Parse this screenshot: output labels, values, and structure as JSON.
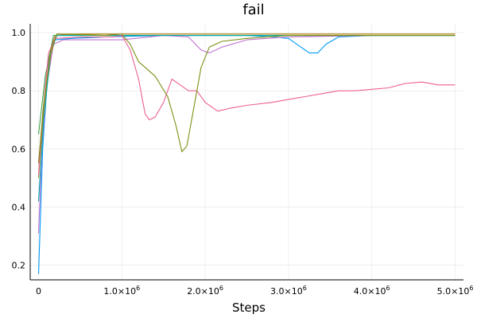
{
  "chart_data": {
    "type": "line",
    "title": "fail",
    "xlabel": "Steps",
    "ylabel": "",
    "xlim": [
      -100000,
      5100000
    ],
    "ylim": [
      0.15,
      1.03
    ],
    "grid": true,
    "legend": "none",
    "x_ticks": [
      {
        "value": 0,
        "label": "0",
        "exp": ""
      },
      {
        "value": 1000000,
        "label": "1.0×10",
        "exp": "6"
      },
      {
        "value": 2000000,
        "label": "2.0×10",
        "exp": "6"
      },
      {
        "value": 3000000,
        "label": "3.0×10",
        "exp": "6"
      },
      {
        "value": 4000000,
        "label": "4.0×10",
        "exp": "6"
      },
      {
        "value": 5000000,
        "label": "5.0×10",
        "exp": "6"
      }
    ],
    "y_ticks": [
      {
        "value": 0.2,
        "label": "0.2"
      },
      {
        "value": 0.4,
        "label": "0.4"
      },
      {
        "value": 0.6,
        "label": "0.6"
      },
      {
        "value": 0.8,
        "label": "0.8"
      },
      {
        "value": 1.0,
        "label": "1.0"
      }
    ],
    "series": [
      {
        "color": "#009AFA",
        "points": [
          [
            0,
            0.17
          ],
          [
            50000,
            0.6
          ],
          [
            120000,
            0.9
          ],
          [
            200000,
            0.975
          ],
          [
            400000,
            0.98
          ],
          [
            800000,
            0.985
          ],
          [
            1500000,
            0.99
          ],
          [
            2500000,
            0.99
          ],
          [
            2800000,
            0.985
          ],
          [
            3000000,
            0.98
          ],
          [
            3150000,
            0.95
          ],
          [
            3250000,
            0.93
          ],
          [
            3350000,
            0.93
          ],
          [
            3450000,
            0.96
          ],
          [
            3600000,
            0.985
          ],
          [
            4000000,
            0.99
          ],
          [
            5000000,
            0.99
          ]
        ]
      },
      {
        "color": "#E36F47",
        "points": [
          [
            0,
            0.55
          ],
          [
            60000,
            0.75
          ],
          [
            150000,
            0.95
          ],
          [
            200000,
            0.99
          ],
          [
            500000,
            0.995
          ],
          [
            1000000,
            0.995
          ],
          [
            2000000,
            0.995
          ],
          [
            3000000,
            0.995
          ],
          [
            4000000,
            0.995
          ],
          [
            5000000,
            0.995
          ]
        ]
      },
      {
        "color": "#3EA44E",
        "points": [
          [
            0,
            0.65
          ],
          [
            80000,
            0.85
          ],
          [
            180000,
            0.99
          ],
          [
            1000000,
            0.99
          ],
          [
            2000000,
            0.99
          ],
          [
            3000000,
            0.99
          ],
          [
            4000000,
            0.99
          ],
          [
            5000000,
            0.99
          ]
        ]
      },
      {
        "color": "#C371D2",
        "points": [
          [
            0,
            0.31
          ],
          [
            40000,
            0.6
          ],
          [
            100000,
            0.82
          ],
          [
            180000,
            0.96
          ],
          [
            300000,
            0.975
          ],
          [
            1000000,
            0.975
          ],
          [
            1500000,
            0.99
          ],
          [
            1800000,
            0.985
          ],
          [
            1950000,
            0.94
          ],
          [
            2050000,
            0.93
          ],
          [
            2200000,
            0.95
          ],
          [
            2500000,
            0.975
          ],
          [
            3000000,
            0.985
          ],
          [
            4000000,
            0.99
          ],
          [
            5000000,
            0.99
          ]
        ]
      },
      {
        "color": "#AC8E18",
        "points": [
          [
            0,
            0.5
          ],
          [
            60000,
            0.72
          ],
          [
            150000,
            0.93
          ],
          [
            220000,
            0.995
          ],
          [
            1000000,
            0.995
          ],
          [
            2000000,
            0.995
          ],
          [
            3000000,
            0.995
          ],
          [
            4000000,
            0.995
          ],
          [
            5000000,
            0.995
          ]
        ]
      },
      {
        "color": "#00A9AD",
        "points": [
          [
            0,
            0.42
          ],
          [
            60000,
            0.7
          ],
          [
            150000,
            0.94
          ],
          [
            220000,
            0.99
          ],
          [
            1000000,
            0.99
          ],
          [
            2000000,
            0.99
          ],
          [
            3000000,
            0.99
          ],
          [
            4000000,
            0.99
          ],
          [
            5000000,
            0.99
          ]
        ]
      },
      {
        "color": "#ED5E93",
        "points": [
          [
            0,
            0.51
          ],
          [
            50000,
            0.72
          ],
          [
            120000,
            0.93
          ],
          [
            200000,
            0.98
          ],
          [
            500000,
            0.985
          ],
          [
            900000,
            0.985
          ],
          [
            1000000,
            0.99
          ],
          [
            1100000,
            0.94
          ],
          [
            1200000,
            0.84
          ],
          [
            1280000,
            0.72
          ],
          [
            1330000,
            0.7
          ],
          [
            1400000,
            0.71
          ],
          [
            1500000,
            0.76
          ],
          [
            1600000,
            0.84
          ],
          [
            1700000,
            0.82
          ],
          [
            1800000,
            0.8
          ],
          [
            1900000,
            0.8
          ],
          [
            2000000,
            0.76
          ],
          [
            2150000,
            0.73
          ],
          [
            2300000,
            0.74
          ],
          [
            2500000,
            0.75
          ],
          [
            2800000,
            0.76
          ],
          [
            3000000,
            0.77
          ],
          [
            3200000,
            0.78
          ],
          [
            3400000,
            0.79
          ],
          [
            3600000,
            0.8
          ],
          [
            3800000,
            0.8
          ],
          [
            4000000,
            0.805
          ],
          [
            4200000,
            0.81
          ],
          [
            4400000,
            0.825
          ],
          [
            4600000,
            0.83
          ],
          [
            4800000,
            0.82
          ],
          [
            5000000,
            0.82
          ]
        ]
      },
      {
        "color": "#7B9114",
        "points": [
          [
            0,
            0.55
          ],
          [
            60000,
            0.75
          ],
          [
            150000,
            0.94
          ],
          [
            220000,
            0.995
          ],
          [
            800000,
            0.99
          ],
          [
            1000000,
            0.995
          ],
          [
            1100000,
            0.96
          ],
          [
            1200000,
            0.9
          ],
          [
            1400000,
            0.85
          ],
          [
            1550000,
            0.78
          ],
          [
            1650000,
            0.68
          ],
          [
            1720000,
            0.59
          ],
          [
            1780000,
            0.61
          ],
          [
            1850000,
            0.72
          ],
          [
            1950000,
            0.88
          ],
          [
            2050000,
            0.95
          ],
          [
            2200000,
            0.97
          ],
          [
            2500000,
            0.98
          ],
          [
            3000000,
            0.99
          ],
          [
            3500000,
            0.99
          ],
          [
            4000000,
            0.99
          ],
          [
            5000000,
            0.99
          ]
        ]
      }
    ]
  }
}
